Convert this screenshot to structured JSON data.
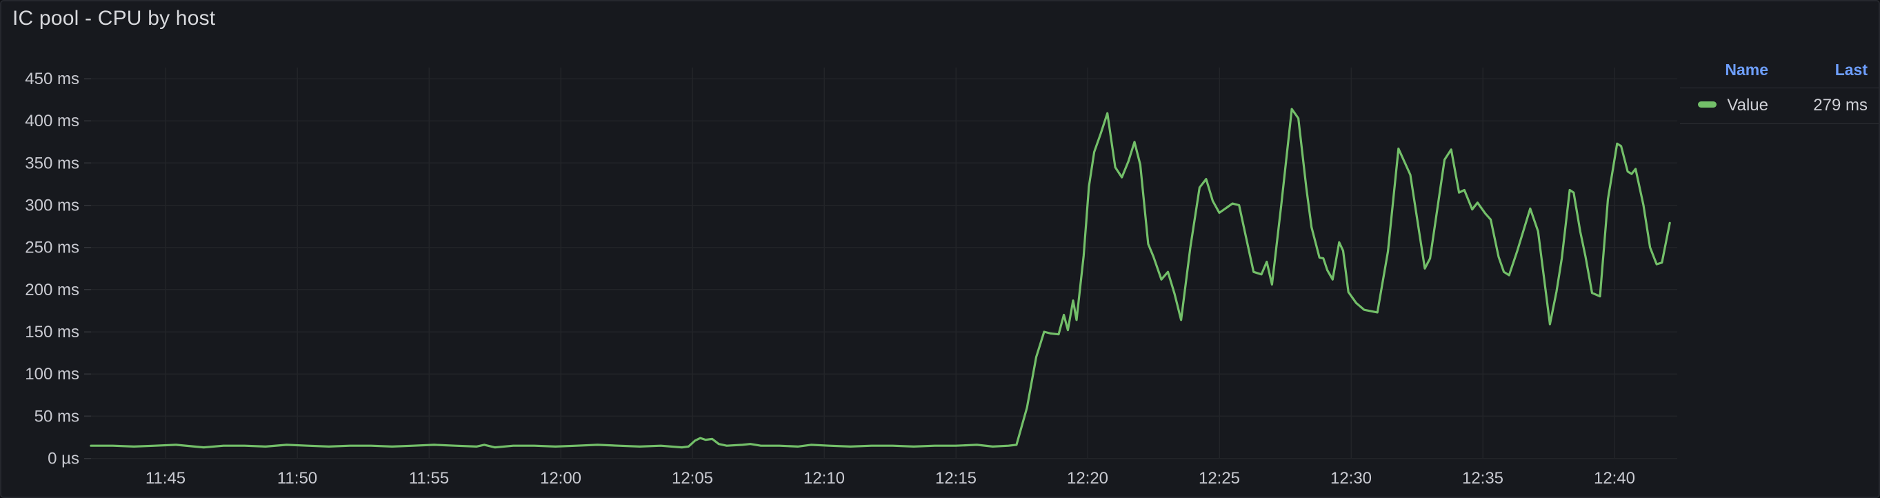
{
  "panel": {
    "title": "IC pool - CPU by host"
  },
  "theme": {
    "panel_background": "#17191e",
    "panel_border": "#26282e",
    "grid_color": "#222428",
    "axis_text_color": "#c9cad1",
    "title_text_color": "#d8d9dd",
    "legend_header_color": "#6e9fff",
    "series_green": "#73bf69"
  },
  "legend": {
    "columns": [
      "Name",
      "Last"
    ],
    "series": [
      {
        "name": "Value",
        "last": "279 ms",
        "color": "#73bf69"
      }
    ]
  },
  "chart_data": {
    "type": "line",
    "title": "IC pool - CPU by host",
    "xlabel": "",
    "ylabel": "",
    "grid": true,
    "legend_position": "top-right",
    "x_axis": {
      "unit": "time",
      "tick_labels": [
        "11:45",
        "11:50",
        "11:55",
        "12:00",
        "12:05",
        "12:10",
        "12:15",
        "12:20",
        "12:25",
        "12:30",
        "12:35",
        "12:40"
      ],
      "tick_minutes_after_11": [
        45,
        50,
        55,
        60,
        65,
        70,
        75,
        80,
        85,
        90,
        95,
        100
      ],
      "range_minutes_after_11": [
        42.17,
        102.36
      ]
    },
    "y_axis": {
      "unit": "ms",
      "tick_values": [
        0,
        50,
        100,
        150,
        200,
        250,
        300,
        350,
        400,
        450
      ],
      "tick_labels": [
        "0 µs",
        "50 ms",
        "100 ms",
        "150 ms",
        "200 ms",
        "250 ms",
        "300 ms",
        "350 ms",
        "400 ms",
        "450 ms"
      ],
      "range_ms": [
        0,
        463
      ]
    },
    "series": [
      {
        "name": "Value",
        "color": "#73bf69",
        "last_value_ms": 279,
        "points_t_vs_ms": [
          [
            42.17,
            15
          ],
          [
            43.0,
            15
          ],
          [
            43.8,
            14
          ],
          [
            44.6,
            15
          ],
          [
            45.4,
            16
          ],
          [
            46.1,
            14
          ],
          [
            46.45,
            13
          ],
          [
            47.2,
            15
          ],
          [
            48.0,
            15
          ],
          [
            48.8,
            14
          ],
          [
            49.6,
            16
          ],
          [
            50.4,
            15
          ],
          [
            51.2,
            14
          ],
          [
            52.0,
            15
          ],
          [
            52.8,
            15
          ],
          [
            53.6,
            14
          ],
          [
            54.4,
            15
          ],
          [
            55.2,
            16
          ],
          [
            56.0,
            15
          ],
          [
            56.8,
            14
          ],
          [
            57.1,
            16
          ],
          [
            57.5,
            13
          ],
          [
            58.2,
            15
          ],
          [
            59.0,
            15
          ],
          [
            59.8,
            14
          ],
          [
            60.6,
            15
          ],
          [
            61.4,
            16
          ],
          [
            62.2,
            15
          ],
          [
            63.0,
            14
          ],
          [
            63.8,
            15
          ],
          [
            64.6,
            13
          ],
          [
            64.85,
            14
          ],
          [
            65.1,
            21
          ],
          [
            65.3,
            24
          ],
          [
            65.5,
            22
          ],
          [
            65.75,
            23
          ],
          [
            66.0,
            17
          ],
          [
            66.3,
            15
          ],
          [
            66.9,
            16
          ],
          [
            67.2,
            17
          ],
          [
            67.6,
            15
          ],
          [
            68.3,
            15
          ],
          [
            69.0,
            14
          ],
          [
            69.5,
            16
          ],
          [
            70.2,
            15
          ],
          [
            71.0,
            14
          ],
          [
            71.8,
            15
          ],
          [
            72.6,
            15
          ],
          [
            73.4,
            14
          ],
          [
            74.2,
            15
          ],
          [
            75.0,
            15
          ],
          [
            75.8,
            16
          ],
          [
            76.4,
            14
          ],
          [
            77.0,
            15
          ],
          [
            77.3,
            16
          ],
          [
            77.7,
            60
          ],
          [
            78.05,
            120
          ],
          [
            78.35,
            150
          ],
          [
            78.6,
            148
          ],
          [
            78.9,
            147
          ],
          [
            79.1,
            170
          ],
          [
            79.25,
            152
          ],
          [
            79.45,
            187
          ],
          [
            79.58,
            164
          ],
          [
            79.85,
            240
          ],
          [
            80.05,
            322
          ],
          [
            80.25,
            363
          ],
          [
            80.5,
            385
          ],
          [
            80.75,
            409
          ],
          [
            81.05,
            345
          ],
          [
            81.3,
            333
          ],
          [
            81.55,
            352
          ],
          [
            81.78,
            375
          ],
          [
            82.0,
            348
          ],
          [
            82.3,
            254
          ],
          [
            82.5,
            239
          ],
          [
            82.8,
            212
          ],
          [
            83.05,
            221
          ],
          [
            83.3,
            195
          ],
          [
            83.55,
            164
          ],
          [
            83.9,
            250
          ],
          [
            84.25,
            321
          ],
          [
            84.5,
            331
          ],
          [
            84.75,
            305
          ],
          [
            85.0,
            291
          ],
          [
            85.5,
            302
          ],
          [
            85.75,
            300
          ],
          [
            86.0,
            264
          ],
          [
            86.3,
            221
          ],
          [
            86.6,
            218
          ],
          [
            86.8,
            233
          ],
          [
            87.0,
            206
          ],
          [
            87.35,
            300
          ],
          [
            87.75,
            414
          ],
          [
            88.0,
            403
          ],
          [
            88.3,
            321
          ],
          [
            88.5,
            274
          ],
          [
            88.8,
            238
          ],
          [
            88.95,
            237
          ],
          [
            89.1,
            223
          ],
          [
            89.3,
            212
          ],
          [
            89.55,
            256
          ],
          [
            89.7,
            246
          ],
          [
            89.9,
            197
          ],
          [
            90.2,
            184
          ],
          [
            90.5,
            176
          ],
          [
            91.0,
            173
          ],
          [
            91.4,
            245
          ],
          [
            91.8,
            367
          ],
          [
            92.25,
            336
          ],
          [
            92.8,
            225
          ],
          [
            93.0,
            237
          ],
          [
            93.55,
            354
          ],
          [
            93.8,
            366
          ],
          [
            94.1,
            315
          ],
          [
            94.3,
            318
          ],
          [
            94.6,
            295
          ],
          [
            94.8,
            303
          ],
          [
            95.1,
            290
          ],
          [
            95.3,
            283
          ],
          [
            95.6,
            239
          ],
          [
            95.8,
            221
          ],
          [
            96.0,
            217
          ],
          [
            96.3,
            245
          ],
          [
            96.8,
            296
          ],
          [
            97.1,
            269
          ],
          [
            97.55,
            159
          ],
          [
            97.8,
            198
          ],
          [
            98.0,
            237
          ],
          [
            98.3,
            318
          ],
          [
            98.45,
            315
          ],
          [
            98.7,
            269
          ],
          [
            98.9,
            239
          ],
          [
            99.15,
            196
          ],
          [
            99.45,
            192
          ],
          [
            99.75,
            307
          ],
          [
            100.1,
            373
          ],
          [
            100.25,
            370
          ],
          [
            100.5,
            340
          ],
          [
            100.65,
            337
          ],
          [
            100.8,
            343
          ],
          [
            101.1,
            300
          ],
          [
            101.35,
            250
          ],
          [
            101.6,
            230
          ],
          [
            101.8,
            232
          ],
          [
            102.1,
            279
          ]
        ]
      }
    ]
  }
}
